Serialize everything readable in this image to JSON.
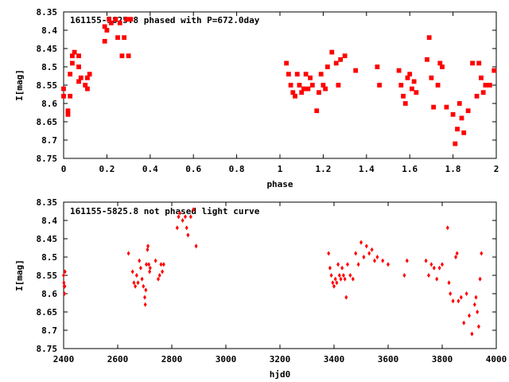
{
  "chart_data": [
    {
      "type": "scatter",
      "title": "161155-5825.8 phased with P=672.0day",
      "xlabel": "phase",
      "ylabel": "I[mag]",
      "xlim": [
        0,
        2
      ],
      "ylim": [
        8.35,
        8.75
      ],
      "y_inverted": true,
      "x_ticks": [
        "0",
        "0.2",
        "0.4",
        "0.6",
        "0.8",
        "1",
        "1.2",
        "1.4",
        "1.6",
        "1.8",
        "2"
      ],
      "y_ticks": [
        "8.35",
        "8.4",
        "8.45",
        "8.5",
        "8.55",
        "8.6",
        "8.65",
        "8.7",
        "8.75"
      ],
      "marker": "filled-square",
      "color": "#ff0000",
      "series": [
        {
          "x": [
            0.0,
            0.0,
            0.02,
            0.02,
            0.03,
            0.03,
            0.04,
            0.04,
            0.05,
            0.07,
            0.07,
            0.07,
            0.08,
            0.1,
            0.11,
            0.11,
            0.12,
            0.19,
            0.19,
            0.2,
            0.21,
            0.22,
            0.24,
            0.25,
            0.26,
            0.27,
            0.28,
            0.29,
            0.3,
            0.31,
            1.03,
            1.04,
            1.05,
            1.06,
            1.07,
            1.08,
            1.09,
            1.1,
            1.11,
            1.12,
            1.13,
            1.14,
            1.15,
            1.17,
            1.18,
            1.19,
            1.2,
            1.21,
            1.22,
            1.24,
            1.26,
            1.27,
            1.28,
            1.3,
            1.35,
            1.45,
            1.46,
            1.55,
            1.56,
            1.57,
            1.58,
            1.59,
            1.6,
            1.61,
            1.62,
            1.63,
            1.68,
            1.69,
            1.7,
            1.71,
            1.73,
            1.74,
            1.75,
            1.77,
            1.8,
            1.81,
            1.82,
            1.83,
            1.84,
            1.85,
            1.87,
            1.89,
            1.91,
            1.92,
            1.93,
            1.94,
            1.95,
            1.97,
            1.99
          ],
          "y": [
            8.56,
            8.58,
            8.62,
            8.63,
            8.58,
            8.52,
            8.49,
            8.47,
            8.46,
            8.54,
            8.5,
            8.47,
            8.53,
            8.55,
            8.56,
            8.53,
            8.52,
            8.43,
            8.39,
            8.4,
            8.37,
            8.38,
            8.37,
            8.42,
            8.38,
            8.47,
            8.42,
            8.37,
            8.47,
            8.37,
            8.49,
            8.52,
            8.55,
            8.57,
            8.58,
            8.52,
            8.55,
            8.57,
            8.56,
            8.52,
            8.56,
            8.53,
            8.55,
            8.62,
            8.57,
            8.52,
            8.55,
            8.56,
            8.5,
            8.46,
            8.49,
            8.55,
            8.48,
            8.47,
            8.51,
            8.5,
            8.55,
            8.51,
            8.55,
            8.58,
            8.6,
            8.53,
            8.52,
            8.56,
            8.54,
            8.57,
            8.48,
            8.42,
            8.53,
            8.61,
            8.55,
            8.49,
            8.5,
            8.61,
            8.63,
            8.71,
            8.67,
            8.6,
            8.64,
            8.68,
            8.62,
            8.49,
            8.58,
            8.49,
            8.53,
            8.57,
            8.55,
            8.55,
            8.51
          ]
        }
      ]
    },
    {
      "type": "scatter",
      "title": "161155-5825.8 not phased light curve",
      "xlabel": "hjd0",
      "ylabel": "I[mag]",
      "xlim": [
        2400,
        4000
      ],
      "ylim": [
        8.35,
        8.75
      ],
      "y_inverted": true,
      "x_ticks": [
        "2400",
        "2600",
        "2800",
        "3000",
        "3200",
        "3400",
        "3600",
        "3800",
        "4000"
      ],
      "y_ticks": [
        "8.35",
        "8.4",
        "8.45",
        "8.5",
        "8.55",
        "8.6",
        "8.65",
        "8.7",
        "8.75"
      ],
      "marker": "small-diamond",
      "color": "#ff0000",
      "series": [
        {
          "x": [
            2400,
            2401,
            2402,
            2403,
            2404,
            2405,
            2640,
            2655,
            2660,
            2665,
            2670,
            2675,
            2680,
            2685,
            2690,
            2695,
            2700,
            2702,
            2704,
            2706,
            2710,
            2712,
            2715,
            2718,
            2720,
            2740,
            2750,
            2755,
            2760,
            2765,
            2770,
            2820,
            2825,
            2830,
            2840,
            2850,
            2855,
            2860,
            2870,
            2880,
            2890,
            3380,
            3385,
            3390,
            3395,
            3400,
            3405,
            3410,
            3415,
            3420,
            3425,
            3430,
            3435,
            3440,
            3445,
            3450,
            3460,
            3470,
            3480,
            3490,
            3500,
            3510,
            3520,
            3530,
            3540,
            3550,
            3560,
            3580,
            3600,
            3660,
            3670,
            3740,
            3750,
            3760,
            3770,
            3780,
            3790,
            3800,
            3820,
            3825,
            3830,
            3840,
            3850,
            3855,
            3860,
            3870,
            3880,
            3890,
            3900,
            3910,
            3920,
            3925,
            3930,
            3935,
            3940,
            3945
          ],
          "y": [
            8.55,
            8.57,
            8.58,
            8.6,
            8.58,
            8.54,
            8.49,
            8.54,
            8.57,
            8.58,
            8.55,
            8.57,
            8.51,
            8.53,
            8.56,
            8.58,
            8.61,
            8.63,
            8.59,
            8.52,
            8.48,
            8.47,
            8.52,
            8.54,
            8.53,
            8.51,
            8.56,
            8.55,
            8.52,
            8.54,
            8.52,
            8.42,
            8.39,
            8.38,
            8.4,
            8.39,
            8.42,
            8.44,
            8.39,
            8.37,
            8.47,
            8.49,
            8.53,
            8.55,
            8.57,
            8.58,
            8.56,
            8.57,
            8.52,
            8.55,
            8.56,
            8.53,
            8.55,
            8.56,
            8.61,
            8.52,
            8.55,
            8.56,
            8.49,
            8.52,
            8.46,
            8.5,
            8.47,
            8.49,
            8.48,
            8.51,
            8.5,
            8.51,
            8.52,
            8.55,
            8.51,
            8.51,
            8.55,
            8.52,
            8.53,
            8.56,
            8.53,
            8.52,
            8.42,
            8.57,
            8.6,
            8.62,
            8.5,
            8.49,
            8.62,
            8.61,
            8.68,
            8.6,
            8.66,
            8.71,
            8.63,
            8.61,
            8.65,
            8.69,
            8.56,
            8.49
          ]
        }
      ]
    }
  ]
}
